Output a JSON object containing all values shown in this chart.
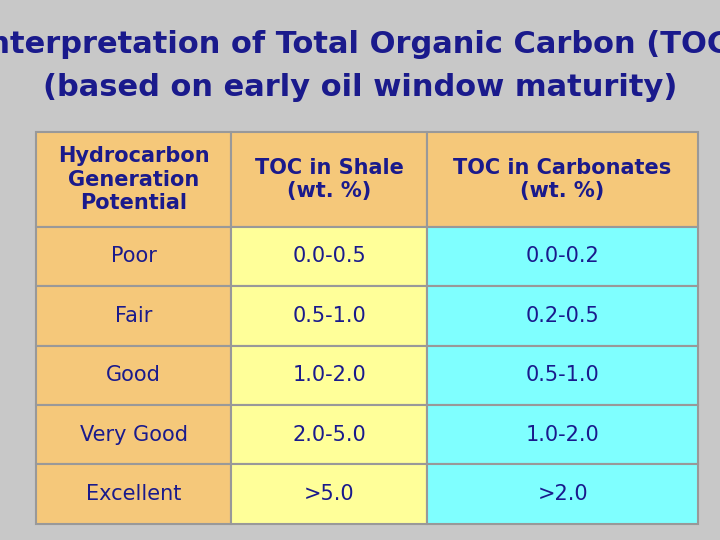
{
  "title_line1": "Interpretation of Total Organic Carbon (TOC)",
  "title_line2": "(based on early oil window maturity)",
  "title_color": "#1a1a8c",
  "title_fontsize": 22,
  "background_color": "#c8c8c8",
  "table_border_color": "#999999",
  "col_header": [
    "Hydrocarbon\nGeneration\nPotential",
    "TOC in Shale\n(wt. %)",
    "TOC in Carbonates\n(wt. %)"
  ],
  "rows": [
    "Poor",
    "Fair",
    "Good",
    "Very Good",
    "Excellent"
  ],
  "shale_values": [
    "0.0-0.5",
    "0.5-1.0",
    "1.0-2.0",
    "2.0-5.0",
    ">5.0"
  ],
  "carbonate_values": [
    "0.0-0.2",
    "0.2-0.5",
    "0.5-1.0",
    "1.0-2.0",
    ">2.0"
  ],
  "header_bg": "#f5c87a",
  "row_col1_bg": "#f5c87a",
  "row_col2_bg": "#ffff99",
  "row_col3_bg": "#7fffff",
  "text_color": "#1a1a8c",
  "data_text_color": "#1a1a8c",
  "cell_fontsize": 15,
  "header_fontsize": 15,
  "row_label_fontsize": 15,
  "border_lw": 1.5
}
